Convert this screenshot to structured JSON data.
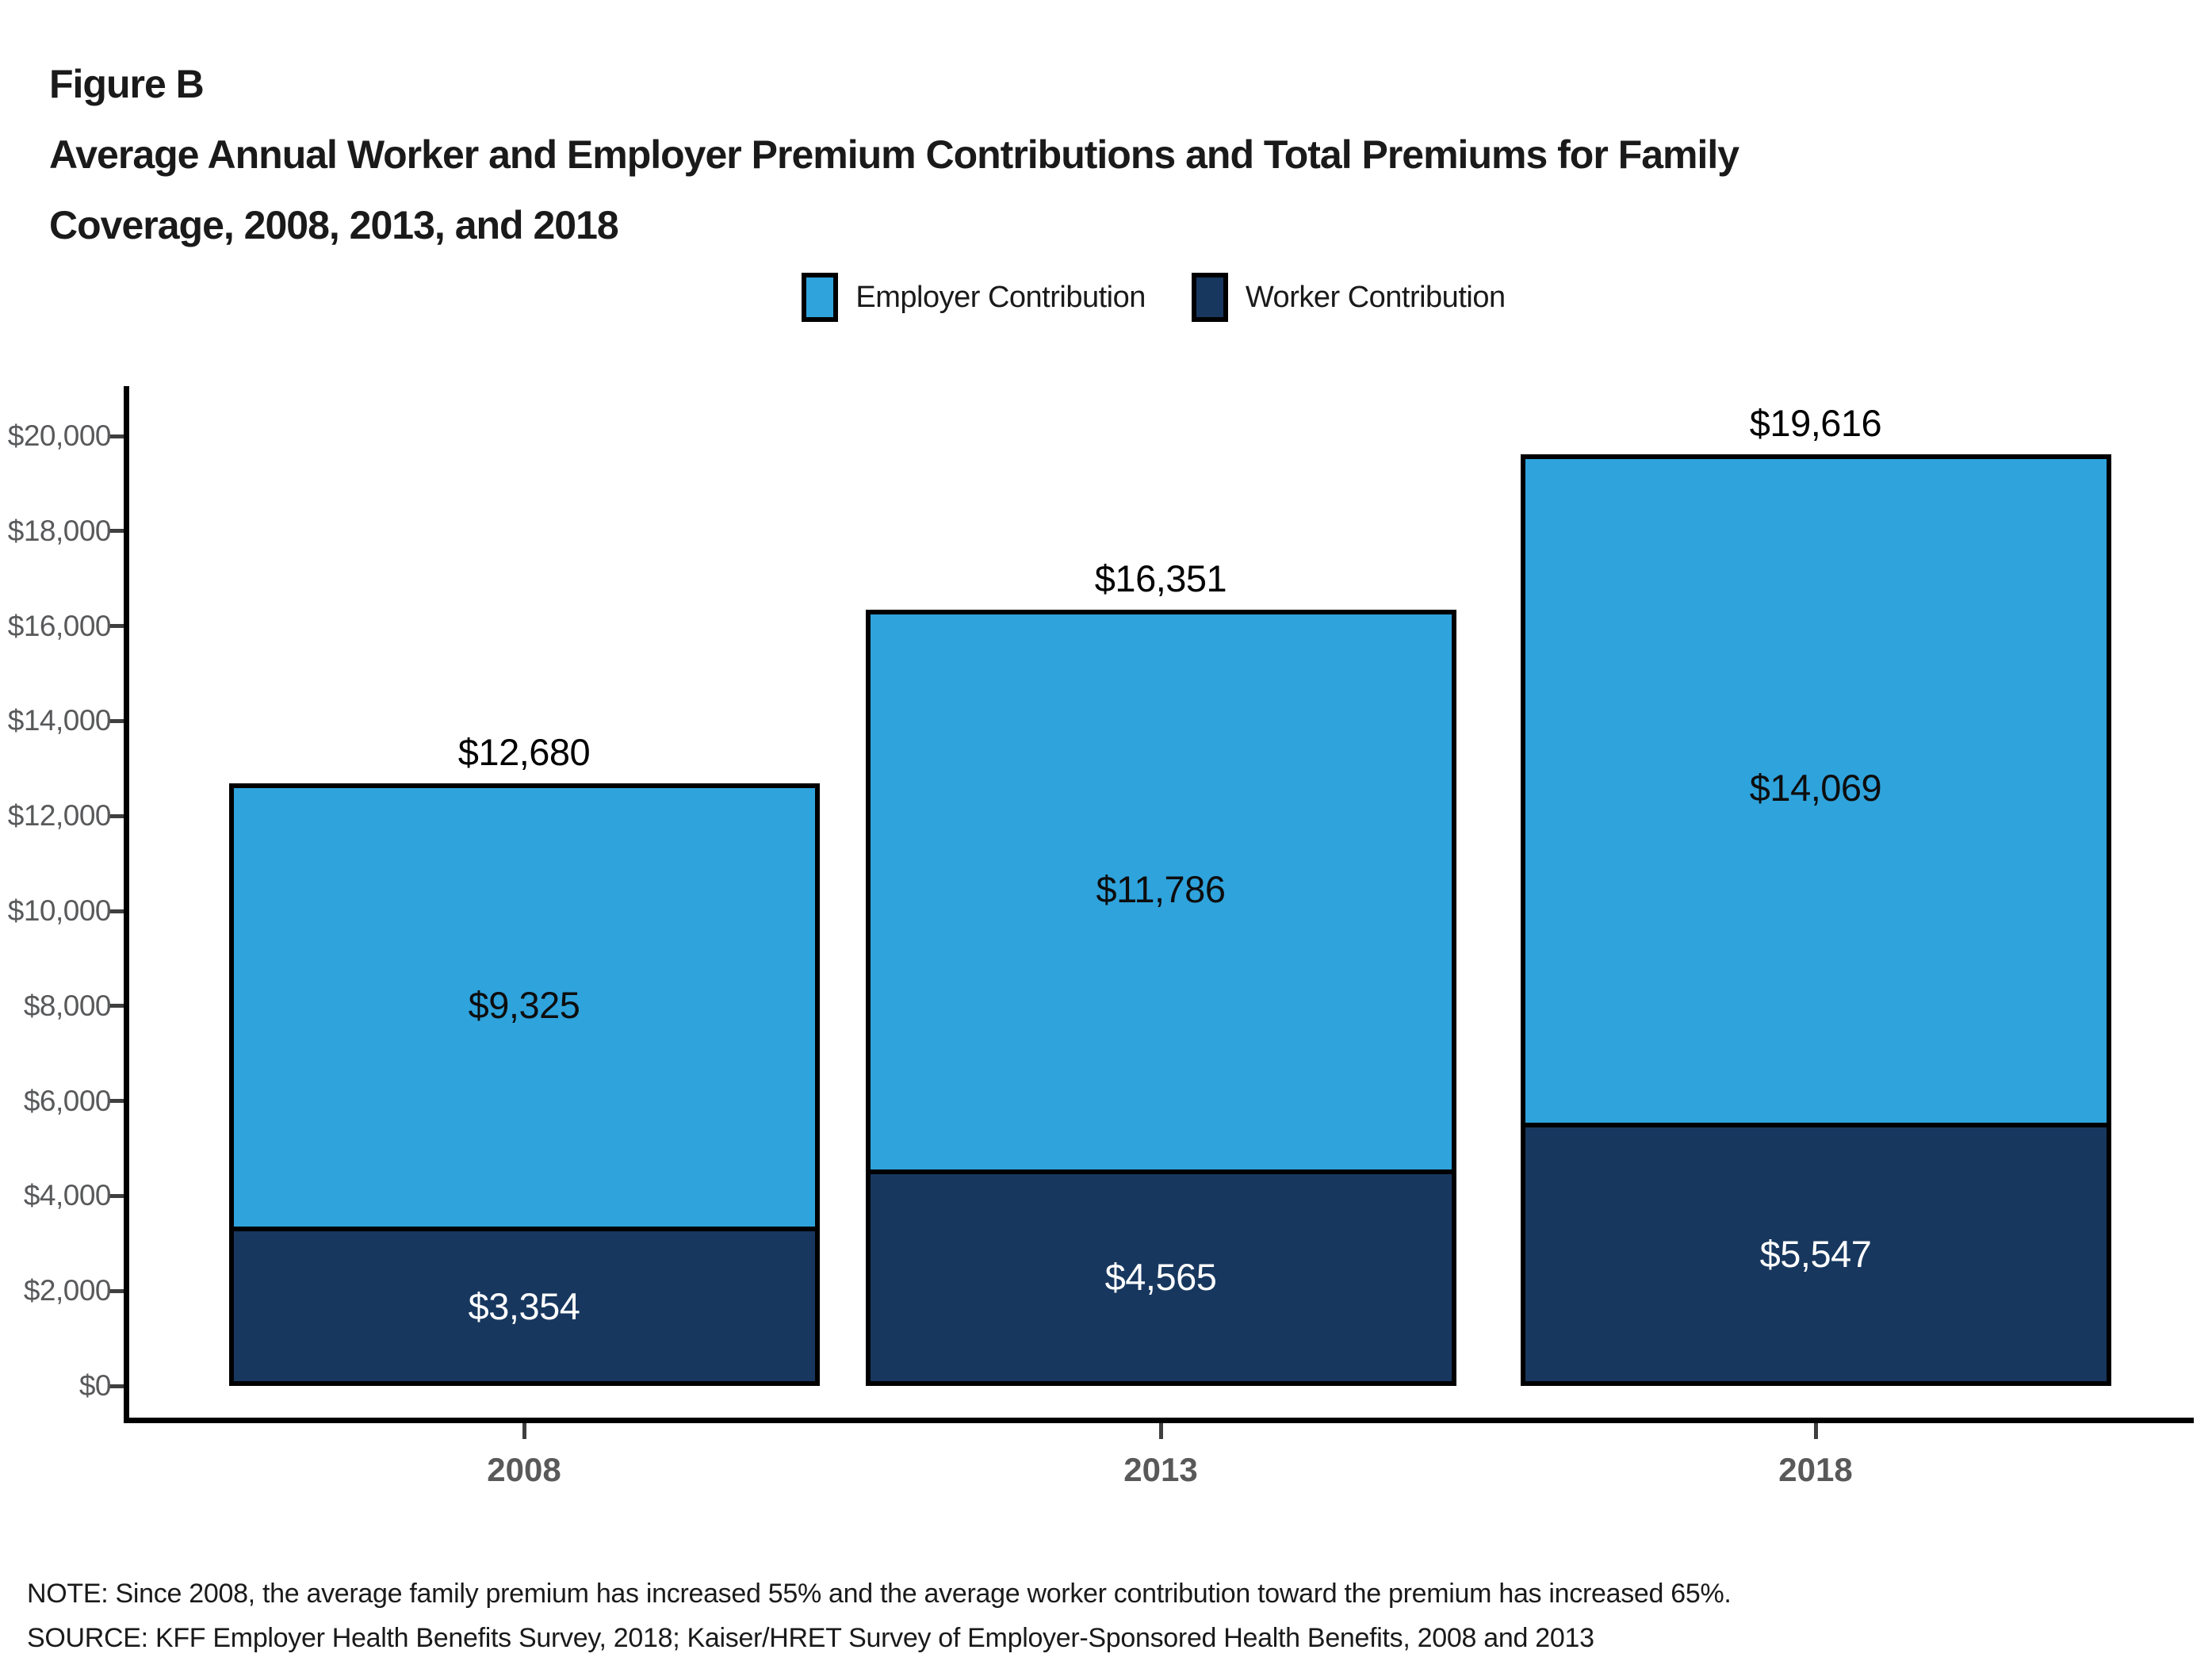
{
  "header": {
    "figure_label": "Figure B",
    "title_lines": [
      "Average Annual Worker and Employer Premium Contributions and Total Premiums for Family",
      "Coverage, 2008, 2013, and 2018"
    ]
  },
  "legend": {
    "items": [
      {
        "label": "Employer Contribution",
        "color": "#2FA3DC"
      },
      {
        "label": "Worker Contribution",
        "color": "#17375E"
      }
    ]
  },
  "chart_data": {
    "type": "bar",
    "stacked": true,
    "title": "Average Annual Worker and Employer Premium Contributions and Total Premiums for Family Coverage, 2008, 2013, and 2018",
    "categories": [
      "2008",
      "2013",
      "2018"
    ],
    "series": [
      {
        "name": "Worker Contribution",
        "color": "#17375E",
        "values": [
          3354,
          4565,
          5547
        ],
        "value_labels": [
          "$3,354",
          "$4,565",
          "$5,547"
        ],
        "label_color": "#ffffff"
      },
      {
        "name": "Employer Contribution",
        "color": "#2FA3DC",
        "values": [
          9325,
          11786,
          14069
        ],
        "value_labels": [
          "$9,325",
          "$11,786",
          "$14,069"
        ],
        "label_color": "#0d0d0d"
      }
    ],
    "totals": [
      12680,
      16351,
      19616
    ],
    "total_labels": [
      "$12,680",
      "$16,351",
      "$19,616"
    ],
    "ylim": [
      0,
      20000
    ],
    "y_ticks": [
      {
        "value": 0,
        "label": "$0"
      },
      {
        "value": 2000,
        "label": "$2,000"
      },
      {
        "value": 4000,
        "label": "$4,000"
      },
      {
        "value": 6000,
        "label": "$6,000"
      },
      {
        "value": 8000,
        "label": "$8,000"
      },
      {
        "value": 10000,
        "label": "$10,000"
      },
      {
        "value": 12000,
        "label": "$12,000"
      },
      {
        "value": 14000,
        "label": "$14,000"
      },
      {
        "value": 16000,
        "label": "$16,000"
      },
      {
        "value": 18000,
        "label": "$18,000"
      },
      {
        "value": 20000,
        "label": "$20,000"
      }
    ],
    "grid": false,
    "legend_position": "top"
  },
  "footer": {
    "note": "NOTE: Since 2008, the average family premium has increased 55% and the average worker contribution toward the premium has increased 65%.",
    "source": "SOURCE: KFF Employer Health Benefits Survey, 2018; Kaiser/HRET Survey of Employer-Sponsored Health Benefits, 2008 and 2013"
  },
  "colors": {
    "axis": "#000000",
    "tick": "#3f3f3f",
    "tick_label": "#58595b",
    "year_label": "#595959",
    "total_label": "#000000"
  }
}
